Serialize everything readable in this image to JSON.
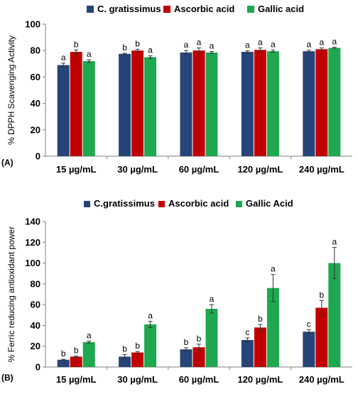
{
  "colors": {
    "c_gratissimus": "#264478",
    "ascorbic": "#C00000",
    "gallic": "#1EA84F",
    "axis": "#7f7f7f",
    "grid": "#d9d9d9",
    "text": "#000000"
  },
  "chart_data": [
    {
      "type": "bar",
      "panel_label": "(A)",
      "title": "",
      "xlabel": "",
      "ylabel": "% DPPH Scavenging Activity",
      "ylim": [
        0,
        100
      ],
      "yticks": [
        0,
        20,
        40,
        60,
        80,
        100
      ],
      "grid": false,
      "legend_position": "top",
      "categories": [
        "15 µg/mL",
        "30 µg/mL",
        "60 µg/mL",
        "120 µg/mL",
        "240 µg/mL"
      ],
      "series": [
        {
          "name": "C. gratissimus",
          "color": "#264478",
          "values": [
            69,
            77.5,
            78.5,
            79,
            79.5
          ],
          "errors": [
            1.5,
            0.5,
            1.5,
            0.8,
            0.8
          ],
          "letters": [
            "a",
            "b",
            "a",
            "a",
            "a"
          ]
        },
        {
          "name": "Ascorbic acid",
          "color": "#C00000",
          "values": [
            79,
            80,
            80,
            80.5,
            81
          ],
          "errors": [
            1.5,
            1.0,
            2.0,
            1.5,
            1.0
          ],
          "letters": [
            "b",
            "b",
            "a",
            "a",
            "a"
          ]
        },
        {
          "name": "Gallic acid",
          "color": "#1EA84F",
          "values": [
            72,
            75,
            78.5,
            79.5,
            82
          ],
          "errors": [
            1.0,
            1.0,
            0.8,
            0.8,
            0.5
          ],
          "letters": [
            "a",
            "a",
            "a",
            "a",
            "a"
          ]
        }
      ]
    },
    {
      "type": "bar",
      "panel_label": "(B)",
      "title": "",
      "xlabel": "",
      "ylabel": "% Ferric reducing antioxidant power",
      "ylim": [
        0,
        140
      ],
      "yticks": [
        0,
        20,
        40,
        60,
        80,
        100,
        120,
        140
      ],
      "grid": false,
      "legend_position": "top",
      "categories": [
        "15 µg/mL",
        "30 µg/mL",
        "60 µg/mL",
        "120 µg/mL",
        "240 µg/mL"
      ],
      "series": [
        {
          "name": "C.gratissimus",
          "color": "#264478",
          "values": [
            7,
            10,
            17,
            26,
            34
          ],
          "errors": [
            0.5,
            2.0,
            1.5,
            2.0,
            2.0
          ],
          "letters": [
            "b",
            "b",
            "b",
            "c",
            "c"
          ]
        },
        {
          "name": "Ascorbic acid",
          "color": "#C00000",
          "values": [
            10,
            14,
            19,
            38,
            57
          ],
          "errors": [
            0.5,
            1.0,
            3.0,
            3.0,
            7.0
          ],
          "letters": [
            "b",
            "b",
            "b",
            "b",
            "b"
          ]
        },
        {
          "name": "Gallic Acid",
          "color": "#1EA84F",
          "values": [
            24,
            41,
            56,
            76,
            100
          ],
          "errors": [
            1.0,
            3.0,
            4.0,
            13.0,
            15.0
          ],
          "letters": [
            "a",
            "a",
            "a",
            "a",
            "a"
          ]
        }
      ]
    }
  ]
}
